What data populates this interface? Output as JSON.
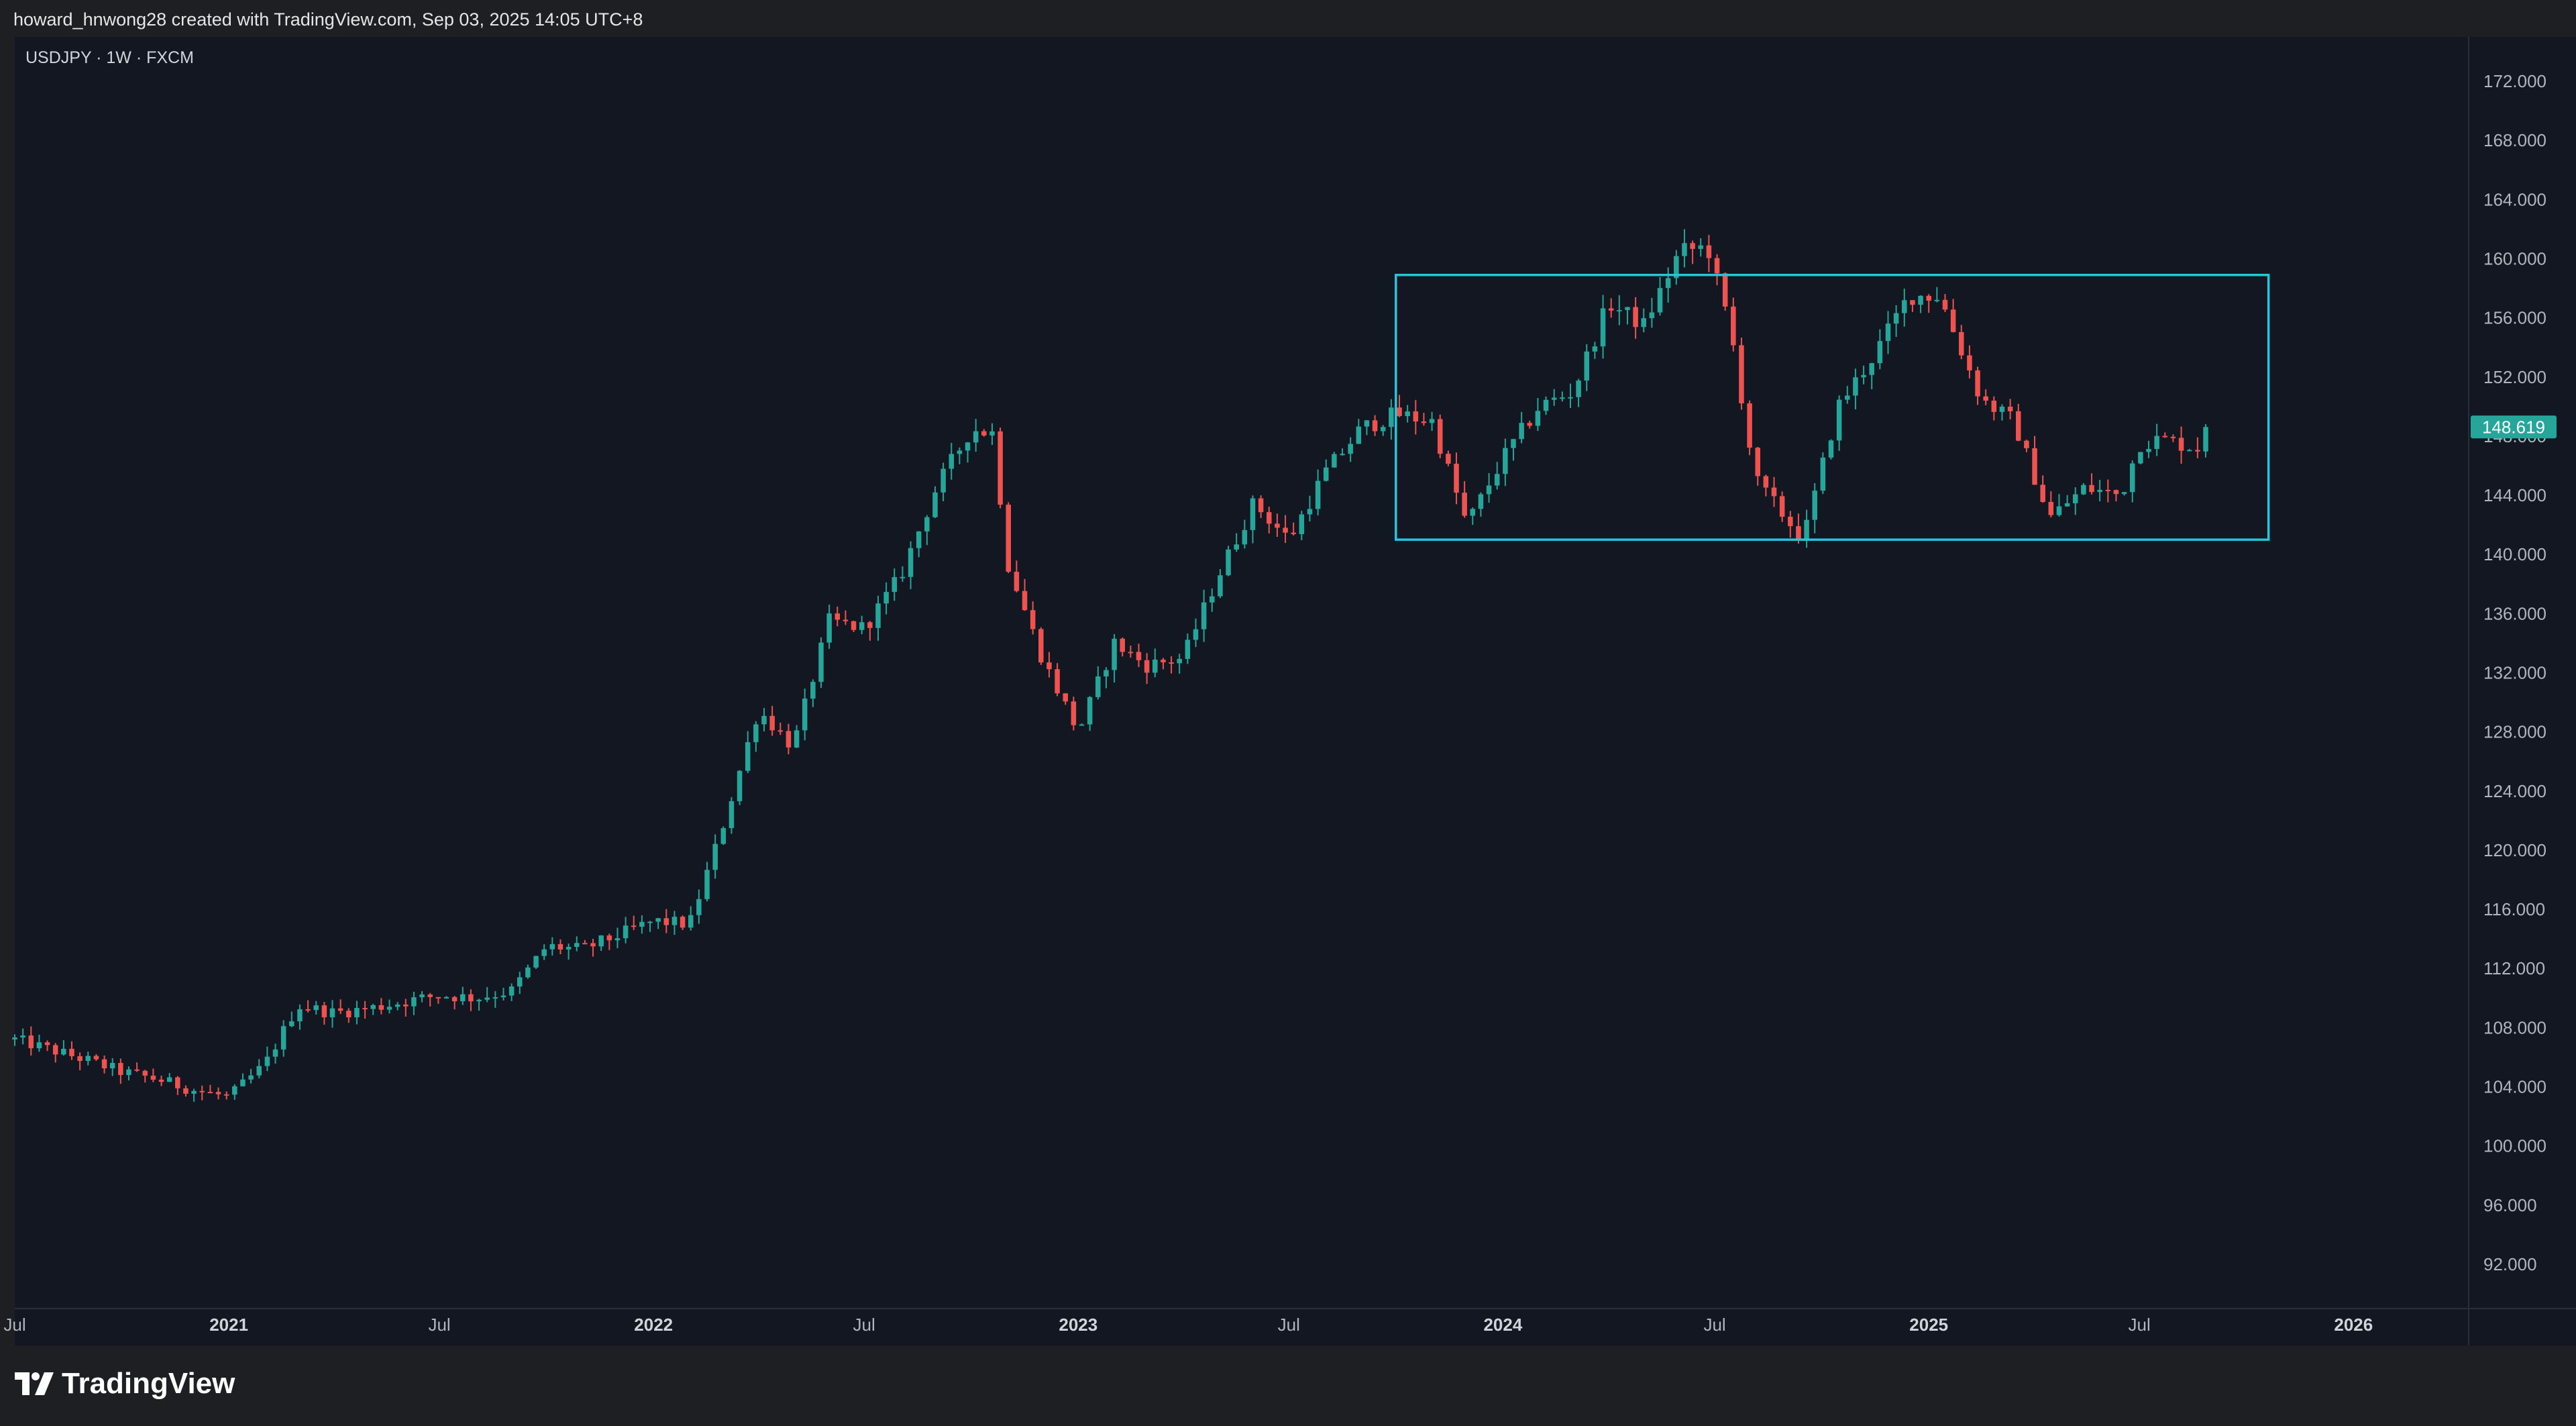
{
  "header": {
    "attribution": "howard_hnwong28 created with TradingView.com, Sep 03, 2025 14:05 UTC+8"
  },
  "symbol_label": "USDJPY · 1W · FXCM",
  "brand": "TradingView",
  "colors": {
    "background": "#131722",
    "up": "#26a69a",
    "down": "#ef5350",
    "box": "#26c6da",
    "axis_text": "#b2b5be",
    "price_tag": "#26a69a"
  },
  "chart_data": {
    "type": "candlestick",
    "symbol": "USDJPY",
    "interval": "1W",
    "source": "FXCM",
    "x_range": [
      "2020-07-01",
      "2026-04-10"
    ],
    "ylim": [
      89,
      175
    ],
    "y_ticks": [
      "172.000",
      "168.000",
      "164.000",
      "160.000",
      "156.000",
      "152.000",
      "148.000",
      "144.000",
      "140.000",
      "136.000",
      "132.000",
      "128.000",
      "124.000",
      "120.000",
      "116.000",
      "112.000",
      "108.000",
      "104.000",
      "100.000",
      "96.000",
      "92.000"
    ],
    "x_ticks": [
      {
        "date": "2020-07-01",
        "label": "Jul",
        "bold": false
      },
      {
        "date": "2021-01-01",
        "label": "2021",
        "bold": true
      },
      {
        "date": "2021-07-01",
        "label": "Jul",
        "bold": false
      },
      {
        "date": "2022-01-01",
        "label": "2022",
        "bold": true
      },
      {
        "date": "2022-07-01",
        "label": "Jul",
        "bold": false
      },
      {
        "date": "2023-01-01",
        "label": "2023",
        "bold": true
      },
      {
        "date": "2023-07-01",
        "label": "Jul",
        "bold": false
      },
      {
        "date": "2024-01-01",
        "label": "2024",
        "bold": true
      },
      {
        "date": "2024-07-01",
        "label": "Jul",
        "bold": false
      },
      {
        "date": "2025-01-01",
        "label": "2025",
        "bold": true
      },
      {
        "date": "2025-07-01",
        "label": "Jul",
        "bold": false
      },
      {
        "date": "2026-01-01",
        "label": "2026",
        "bold": true
      }
    ],
    "last_price": "148.619",
    "last_price_value": 148.619,
    "range_box": {
      "x_start": "2023-10-01",
      "x_end": "2025-10-20",
      "y_low": 141.0,
      "y_high": 158.9
    },
    "close_anchors": [
      [
        "2020-07-01",
        107.2
      ],
      [
        "2020-09-01",
        105.8
      ],
      [
        "2020-10-01",
        105.0
      ],
      [
        "2020-11-01",
        104.5
      ],
      [
        "2020-12-01",
        103.8
      ],
      [
        "2021-01-01",
        103.3
      ],
      [
        "2021-02-01",
        105.5
      ],
      [
        "2021-03-01",
        109.5
      ],
      [
        "2021-04-01",
        109.0
      ],
      [
        "2021-05-01",
        109.3
      ],
      [
        "2021-07-01",
        110.2
      ],
      [
        "2021-08-01",
        110.0
      ],
      [
        "2021-09-01",
        110.5
      ],
      [
        "2021-10-01",
        113.5
      ],
      [
        "2021-11-01",
        113.3
      ],
      [
        "2022-01-01",
        115.2
      ],
      [
        "2022-02-01",
        115.0
      ],
      [
        "2022-03-01",
        121.5
      ],
      [
        "2022-04-01",
        129.5
      ],
      [
        "2022-05-01",
        127.0
      ],
      [
        "2022-06-01",
        135.5
      ],
      [
        "2022-07-01",
        135.0
      ],
      [
        "2022-08-01",
        138.5
      ],
      [
        "2022-09-01",
        144.5
      ],
      [
        "2022-10-01",
        148.5
      ],
      [
        "2022-10-20",
        148.2
      ],
      [
        "2022-11-01",
        139.5
      ],
      [
        "2022-12-01",
        133.0
      ],
      [
        "2023-01-01",
        128.0
      ],
      [
        "2023-02-01",
        134.0
      ],
      [
        "2023-03-01",
        132.5
      ],
      [
        "2023-04-01",
        133.0
      ],
      [
        "2023-05-01",
        138.5
      ],
      [
        "2023-06-01",
        143.5
      ],
      [
        "2023-07-01",
        141.0
      ],
      [
        "2023-08-01",
        145.5
      ],
      [
        "2023-09-01",
        148.5
      ],
      [
        "2023-10-01",
        149.5
      ],
      [
        "2023-11-01",
        149.0
      ],
      [
        "2023-12-01",
        142.0
      ],
      [
        "2024-01-01",
        146.5
      ],
      [
        "2024-02-01",
        150.0
      ],
      [
        "2024-03-01",
        151.0
      ],
      [
        "2024-04-01",
        157.0
      ],
      [
        "2024-05-01",
        155.5
      ],
      [
        "2024-06-01",
        160.5
      ],
      [
        "2024-06-25",
        160.8
      ],
      [
        "2024-07-15",
        155.0
      ],
      [
        "2024-08-05",
        145.0
      ],
      [
        "2024-09-15",
        141.0
      ],
      [
        "2024-10-15",
        150.0
      ],
      [
        "2024-11-15",
        153.5
      ],
      [
        "2024-12-15",
        157.5
      ],
      [
        "2025-01-10",
        157.5
      ],
      [
        "2025-02-15",
        150.5
      ],
      [
        "2025-03-15",
        149.0
      ],
      [
        "2025-04-15",
        142.5
      ],
      [
        "2025-05-15",
        144.5
      ],
      [
        "2025-06-15",
        144.0
      ],
      [
        "2025-07-01",
        147.5
      ],
      [
        "2025-07-20",
        147.8
      ],
      [
        "2025-08-20",
        147.2
      ],
      [
        "2025-09-01",
        148.619
      ]
    ]
  }
}
